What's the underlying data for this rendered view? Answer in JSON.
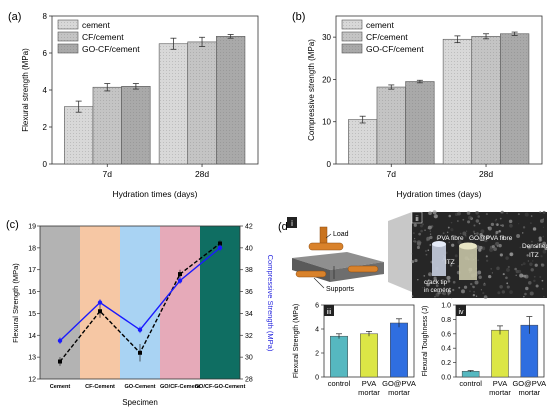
{
  "colors": {
    "bar_cement": "#d8d8d8",
    "bar_cf": "#c4c4c4",
    "bar_go": "#a9a9a9",
    "ci": "#6a6a6a",
    "teal": "#56b8c0",
    "yellow": "#dce646",
    "blue": "#2f6ee0",
    "zone1": "#b3b3b3",
    "zone2": "#f6c7a4",
    "zone3": "#a9d3f3",
    "zone4": "#e6aab9",
    "zone5": "#0f6e62",
    "line_black": "#000000",
    "line_blue": "#1a1aff",
    "photo_dark": "#202020",
    "photo_light": "#8a8a8a",
    "slab": "#5c5c5c",
    "roller": "#d9822b"
  },
  "chart_data": [
    {
      "id": "a",
      "type": "bar",
      "panel_label": "(a)",
      "categories": [
        "7d",
        "28d"
      ],
      "series": [
        {
          "name": "cement",
          "values": [
            3.1,
            6.5
          ],
          "errors": [
            0.3,
            0.3
          ]
        },
        {
          "name": "CF/cement",
          "values": [
            4.15,
            6.6
          ],
          "errors": [
            0.2,
            0.25
          ]
        },
        {
          "name": "GO-CF/cement",
          "values": [
            4.2,
            6.9
          ],
          "errors": [
            0.15,
            0.1
          ]
        }
      ],
      "xlabel": "Hydration times (days)",
      "ylabel": "Flexural strength (MPa)",
      "ylim": [
        0,
        8
      ],
      "yticks": [
        0,
        2,
        4,
        6,
        8
      ],
      "legend": "top-left"
    },
    {
      "id": "b",
      "type": "bar",
      "panel_label": "(b)",
      "categories": [
        "7d",
        "28d"
      ],
      "series": [
        {
          "name": "cement",
          "values": [
            10.5,
            29.5
          ],
          "errors": [
            0.8,
            0.8
          ]
        },
        {
          "name": "CF/cement",
          "values": [
            18.2,
            30.2
          ],
          "errors": [
            0.5,
            0.6
          ]
        },
        {
          "name": "GO-CF/cement",
          "values": [
            19.5,
            30.8
          ],
          "errors": [
            0.3,
            0.4
          ]
        }
      ],
      "xlabel": "Hydration times (days)",
      "ylabel": "Compressive strength (MPa)",
      "ylim": [
        0,
        35
      ],
      "yticks": [
        0,
        10,
        20,
        30
      ],
      "legend": "top-left"
    },
    {
      "id": "c",
      "type": "line",
      "panel_label": "(c)",
      "categories": [
        "Cement",
        "CF-Cement",
        "GO-Cement",
        "GO/CF-Cement",
        "GO/CF-GO-Cement"
      ],
      "series": [
        {
          "name": "Flexural Strength",
          "axis": "left",
          "values": [
            12.8,
            15.1,
            13.2,
            16.8,
            18.2
          ],
          "errors": [
            0.2,
            0.3,
            0.4,
            0.2,
            0.15
          ]
        },
        {
          "name": "Compressive Strength",
          "axis": "right",
          "values": [
            31.5,
            35.0,
            32.5,
            37.0,
            40.0
          ],
          "errors": [
            0.3,
            0.3,
            0.3,
            0.3,
            0.3
          ]
        }
      ],
      "xlabel": "Specimen",
      "ylabel": "Flexural Strength (MPa)",
      "ylabel_right": "Compressive Strength (MPa)",
      "ylim": [
        12,
        19
      ],
      "ylim_right": [
        28,
        42
      ],
      "yticks": [
        12,
        13,
        14,
        15,
        16,
        17,
        18,
        19
      ],
      "yticks_right": [
        28,
        30,
        32,
        34,
        36,
        38,
        40,
        42
      ]
    },
    {
      "id": "d-iii",
      "type": "bar",
      "panel_label": "iii",
      "categories": [
        "control",
        "PVA\nmortar",
        "GO@PVA\nmortar"
      ],
      "values": [
        3.4,
        3.6,
        4.5
      ],
      "errors": [
        0.2,
        0.2,
        0.35
      ],
      "ylabel": "Flexural Strength (MPa)",
      "ylim": [
        0,
        6
      ],
      "yticks": [
        0,
        2,
        4,
        6
      ]
    },
    {
      "id": "d-iv",
      "type": "bar",
      "panel_label": "iv",
      "categories": [
        "control",
        "PVA\nmortar",
        "GO@PVA\nmortar"
      ],
      "values": [
        0.08,
        0.65,
        0.72
      ],
      "errors": [
        0.01,
        0.06,
        0.12
      ],
      "ylabel": "Flexural Toughness (J)",
      "ylim": [
        0,
        1.0
      ],
      "yticks": [
        "0.0",
        "0.2",
        "0.4",
        "0.6",
        "0.8",
        "1.0"
      ]
    }
  ],
  "panel_d": {
    "panel_label": "(d)",
    "image_i_label": "i",
    "image_ii_label": "ii",
    "load_label": "Load",
    "supports_label": "Supports",
    "pva_fibre_label": "PVA fibre",
    "gopva_fibre_label": "GO@PVA fibre",
    "densified_label": "Densified\nITZ",
    "itz_label": "ITZ",
    "crack_label": "crack tip\nin cement"
  }
}
